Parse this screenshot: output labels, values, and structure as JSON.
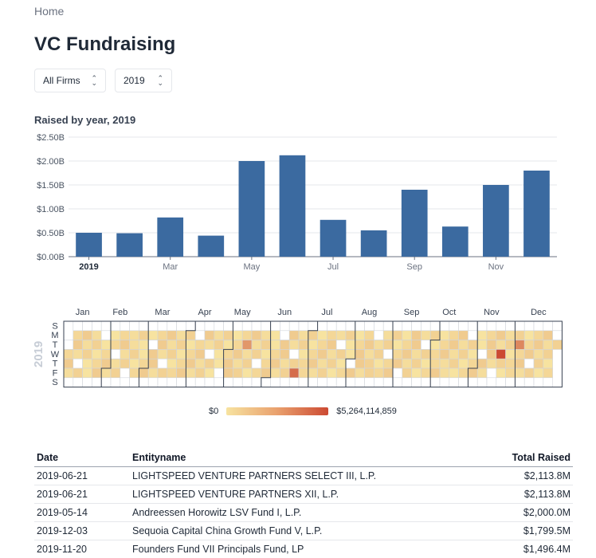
{
  "breadcrumb": "Home",
  "title": "VC Fundraising",
  "filters": {
    "firm": "All Firms",
    "year": "2019"
  },
  "chart_title": "Raised by year, 2019",
  "chart_data": [
    {
      "type": "bar",
      "categories": [
        "Jan",
        "Feb",
        "Mar",
        "Apr",
        "May",
        "Jun",
        "Jul",
        "Aug",
        "Sep",
        "Oct",
        "Nov",
        "Dec"
      ],
      "values": [
        0.5,
        0.49,
        0.82,
        0.44,
        2.0,
        2.12,
        0.77,
        0.55,
        1.4,
        0.63,
        1.5,
        1.8
      ],
      "value_unit": "billions USD",
      "xtick_labels": [
        "2019",
        "Mar",
        "May",
        "Jul",
        "Sep",
        "Nov"
      ],
      "ytick_labels": [
        "$0.00B",
        "$0.50B",
        "$1.00B",
        "$1.50B",
        "$2.00B",
        "$2.50B"
      ],
      "ylim": [
        0,
        2.5
      ],
      "grid": true,
      "color": "#3b6aa0"
    },
    {
      "type": "heatmap",
      "year_label": "2019",
      "month_labels": [
        "Jan",
        "Feb",
        "Mar",
        "Apr",
        "May",
        "Jun",
        "Jul",
        "Aug",
        "Sep",
        "Oct",
        "Nov",
        "Dec"
      ],
      "day_labels": [
        "S",
        "M",
        "T",
        "W",
        "T",
        "F",
        "S"
      ],
      "legend_min": "$0",
      "legend_max": "$5,264,114,859",
      "color_low": "#f7e3a0",
      "color_high": "#cc4a33",
      "hot_days": [
        "2019-05-14",
        "2019-06-21",
        "2019-11-20",
        "2019-12-03"
      ]
    }
  ],
  "table": {
    "headers": [
      "Date",
      "Entityname",
      "Total Raised"
    ],
    "rows": [
      [
        "2019-06-21",
        "LIGHTSPEED VENTURE PARTNERS SELECT III, L.P.",
        "$2,113.8M"
      ],
      [
        "2019-06-21",
        "LIGHTSPEED VENTURE PARTNERS XII, L.P.",
        "$2,113.8M"
      ],
      [
        "2019-05-14",
        "Andreessen Horowitz LSV Fund I, L.P.",
        "$2,000.0M"
      ],
      [
        "2019-12-03",
        "Sequoia Capital China Growth Fund V, L.P.",
        "$1,799.5M"
      ],
      [
        "2019-11-20",
        "Founders Fund VII Principals Fund, LP",
        "$1,496.4M"
      ]
    ]
  }
}
